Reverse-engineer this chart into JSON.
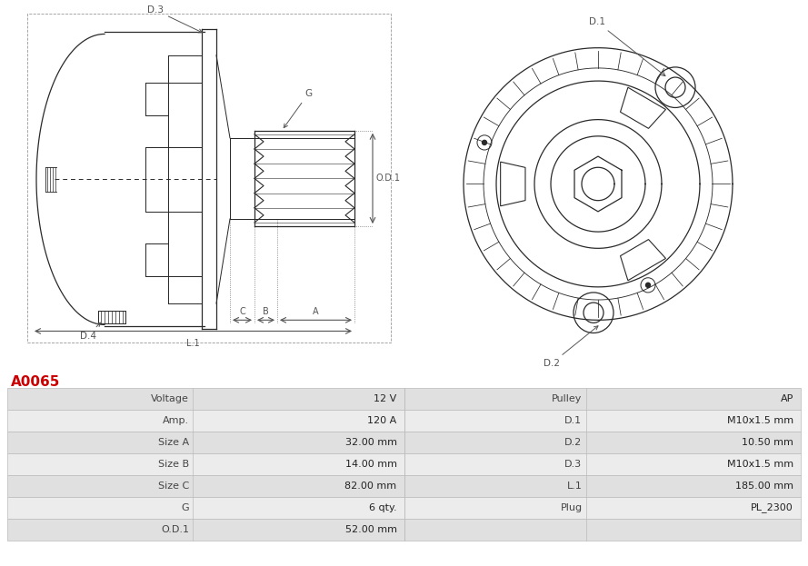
{
  "title": "A0065",
  "title_color": "#cc0000",
  "bg_color": "#ffffff",
  "table_data": {
    "left_labels": [
      "Voltage",
      "Amp.",
      "Size A",
      "Size B",
      "Size C",
      "G",
      "O.D.1"
    ],
    "left_values": [
      "12 V",
      "120 A",
      "32.00 mm",
      "14.00 mm",
      "82.00 mm",
      "6 qty.",
      "52.00 mm"
    ],
    "right_labels": [
      "Pulley",
      "D.1",
      "D.2",
      "D.3",
      "L.1",
      "Plug",
      ""
    ],
    "right_values": [
      "AP",
      "M10x1.5 mm",
      "10.50 mm",
      "M10x1.5 mm",
      "185.00 mm",
      "PL_2300",
      ""
    ]
  },
  "row_colors": [
    "#e0e0e0",
    "#ececec"
  ],
  "line_color": "#2a2a2a",
  "dim_color": "#555555",
  "label_color": "#333333"
}
